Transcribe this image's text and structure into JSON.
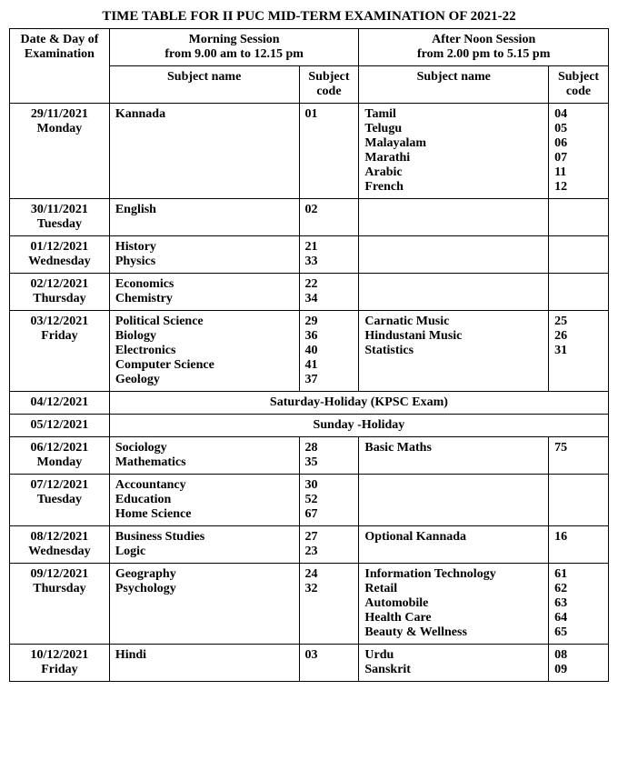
{
  "title": "TIME TABLE FOR II PUC MID-TERM EXAMINATION OF 2021-22",
  "headers": {
    "dateCol": "Date & Day of Examination",
    "morning": "Morning Session\nfrom 9.00 am to 12.15 pm",
    "afternoon": "After Noon Session\nfrom 2.00 pm to 5.15 pm",
    "subjectName": "Subject name",
    "subjectCode": "Subject code"
  },
  "rows": [
    {
      "date": "29/11/2021\nMonday",
      "m_subj": "Kannada",
      "m_code": "01",
      "a_subj": "Tamil\nTelugu\nMalayalam\nMarathi\nArabic\nFrench",
      "a_code": "04\n05\n06\n07\n11\n12"
    },
    {
      "date": "30/11/2021\nTuesday",
      "m_subj": "English",
      "m_code": "02",
      "a_subj": "",
      "a_code": ""
    },
    {
      "date": "01/12/2021\nWednesday",
      "m_subj": "History\nPhysics",
      "m_code": "21\n33",
      "a_subj": "",
      "a_code": ""
    },
    {
      "date": "02/12/2021\nThursday",
      "m_subj": "Economics\nChemistry",
      "m_code": "22\n34",
      "a_subj": "",
      "a_code": ""
    },
    {
      "date": "03/12/2021\nFriday",
      "m_subj": "Political Science\nBiology\nElectronics\nComputer Science\nGeology",
      "m_code": "29\n36\n40\n41\n37",
      "a_subj": "Carnatic Music\nHindustani Music\nStatistics",
      "a_code": "25\n26\n31"
    },
    {
      "holiday": true,
      "date": "04/12/2021",
      "text": "Saturday-Holiday (KPSC Exam)"
    },
    {
      "holiday": true,
      "date": "05/12/2021",
      "text": "Sunday -Holiday"
    },
    {
      "date": "06/12/2021\nMonday",
      "m_subj": "Sociology\nMathematics",
      "m_code": "28\n35",
      "a_subj": "Basic Maths",
      "a_code": "75"
    },
    {
      "date": "07/12/2021\nTuesday",
      "m_subj": "Accountancy\nEducation\nHome Science",
      "m_code": "30\n52\n67",
      "a_subj": "",
      "a_code": ""
    },
    {
      "date": "08/12/2021\nWednesday",
      "m_subj": "Business Studies\nLogic",
      "m_code": "27\n23",
      "a_subj": "Optional Kannada",
      "a_code": "16"
    },
    {
      "date": "09/12/2021\nThursday",
      "m_subj": "Geography\nPsychology",
      "m_code": "24\n32",
      "a_subj": "Information Technology\nRetail\nAutomobile\nHealth Care\nBeauty & Wellness",
      "a_code": "61\n62\n63\n64\n65"
    },
    {
      "date": "10/12/2021\nFriday",
      "m_subj": "Hindi",
      "m_code": "03",
      "a_subj": "Urdu\nSanskrit",
      "a_code": "08\n09"
    }
  ]
}
